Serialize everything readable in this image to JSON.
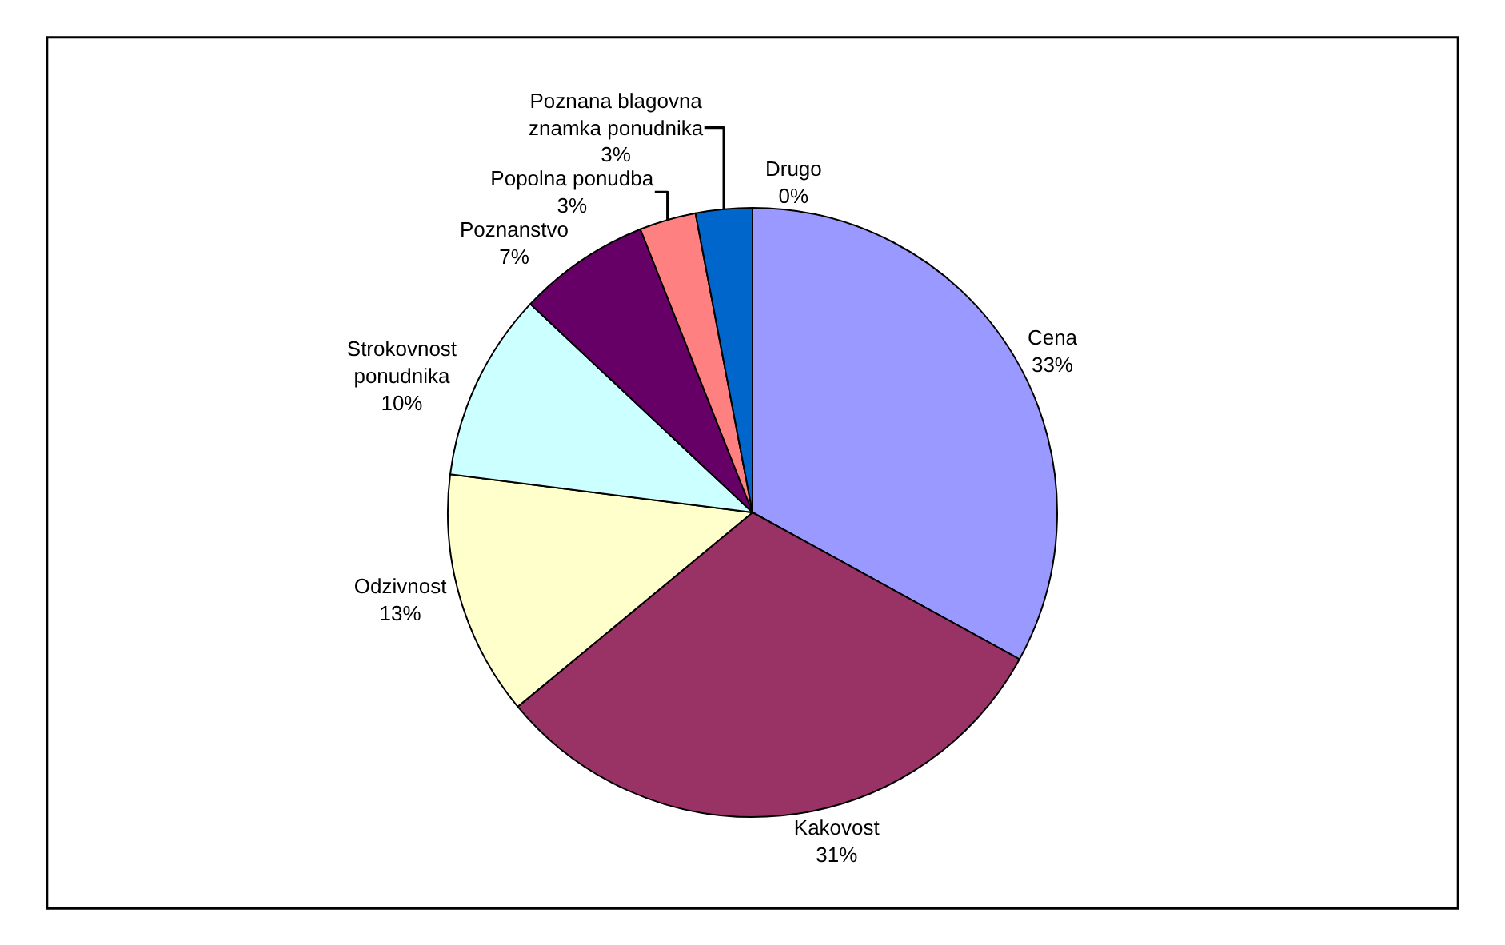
{
  "chart_data": {
    "type": "pie",
    "categories": [
      "Cena",
      "Kakovost",
      "Odzivnost",
      "Strokovnost ponudnika",
      "Poznanstvo",
      "Popolna ponudba",
      "Poznana blagovna znamka ponudnika",
      "Drugo"
    ],
    "values": [
      33,
      31,
      13,
      10,
      7,
      3,
      3,
      0
    ],
    "colors": [
      "#9999ff",
      "#993366",
      "#ffffcc",
      "#ccffff",
      "#660066",
      "#ff8080",
      "#0066cc",
      "#ccccff"
    ],
    "value_labels": [
      "33%",
      "31%",
      "13%",
      "10%",
      "7%",
      "3%",
      "3%",
      "0%"
    ],
    "legend": false
  }
}
